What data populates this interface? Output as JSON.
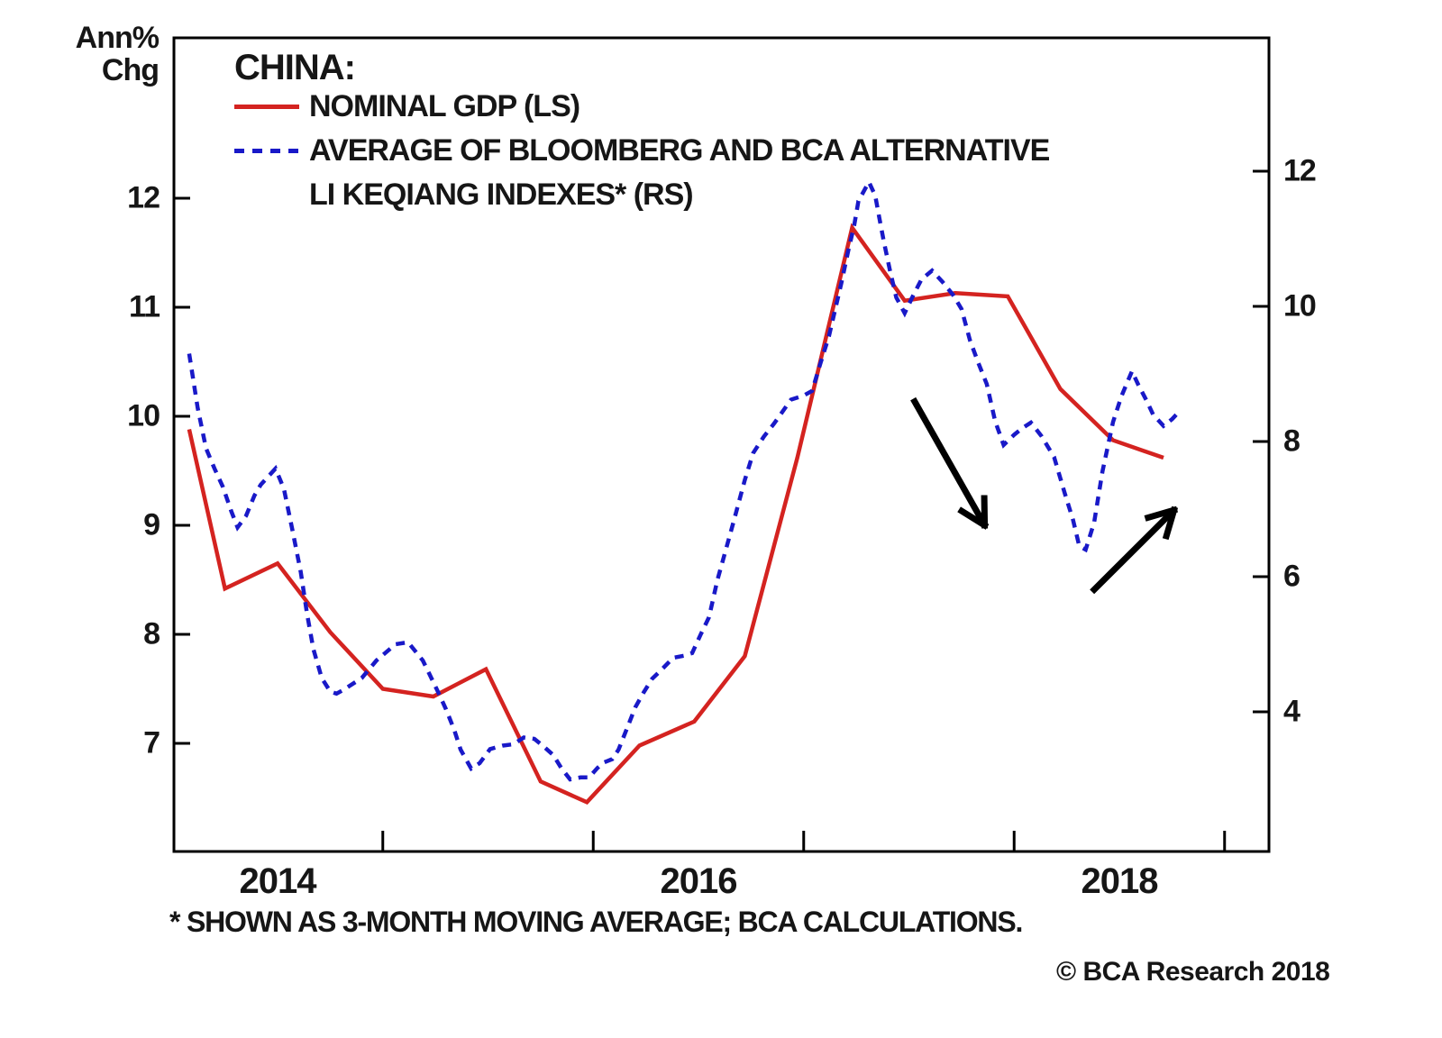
{
  "left_axis_title": {
    "line1": "Ann%",
    "line2": "Chg"
  },
  "legend": {
    "title": "CHINA:",
    "entries": [
      {
        "label": "NOMINAL GDP (LS)",
        "color": "#d42320",
        "style": "solid"
      },
      {
        "label_line1": "AVERAGE OF BLOOMBERG AND BCA ALTERNATIVE",
        "label_line2": "LI KEQIANG INDEXES* (RS)",
        "color": "#1919c8",
        "style": "dashed"
      }
    ]
  },
  "footnote": "* SHOWN AS 3-MONTH MOVING AVERAGE; BCA CALCULATIONS.",
  "copyright": "© BCA Research 2018",
  "chart_data": {
    "type": "line",
    "title": "CHINA: NOMINAL GDP vs AVERAGE OF BLOOMBERG AND BCA ALTERNATIVE LI KEQIANG INDEXES",
    "grid": false,
    "legend_position": "top-left-inside",
    "x_axis": {
      "range": [
        2013.5,
        2018.72
      ],
      "tick_positions": [
        2014.5,
        2015.5,
        2016.5,
        2017.5,
        2018.5
      ],
      "year_labels": [
        {
          "t": 2014,
          "label": "2014"
        },
        {
          "t": 2016,
          "label": "2016"
        },
        {
          "t": 2018,
          "label": "2018"
        }
      ]
    },
    "left_axis": {
      "title": "Ann% Chg",
      "ticks": [
        12,
        11,
        10,
        9,
        8,
        7
      ]
    },
    "right_axis": {
      "ticks": [
        12,
        10,
        8,
        6,
        4
      ]
    },
    "series": [
      {
        "name": "NOMINAL GDP (LS)",
        "axis": "left",
        "color": "#d42320",
        "line_style": "solid",
        "points": [
          [
            2013.58,
            9.88
          ],
          [
            2013.75,
            8.42
          ],
          [
            2014.0,
            8.65
          ],
          [
            2014.25,
            8.02
          ],
          [
            2014.5,
            7.5
          ],
          [
            2014.74,
            7.43
          ],
          [
            2014.99,
            7.68
          ],
          [
            2015.25,
            6.65
          ],
          [
            2015.47,
            6.46
          ],
          [
            2015.72,
            6.98
          ],
          [
            2015.98,
            7.2
          ],
          [
            2016.22,
            7.8
          ],
          [
            2016.47,
            9.62
          ],
          [
            2016.73,
            11.73
          ],
          [
            2016.98,
            11.06
          ],
          [
            2017.22,
            11.13
          ],
          [
            2017.47,
            11.1
          ],
          [
            2017.72,
            10.25
          ],
          [
            2017.97,
            9.78
          ],
          [
            2018.21,
            9.62
          ]
        ]
      },
      {
        "name": "AVERAGE OF BLOOMBERG AND BCA ALTERNATIVE LI KEQIANG INDEXES* (RS)",
        "axis": "right",
        "color": "#1919c8",
        "line_style": "dashed",
        "points": [
          [
            2013.58,
            9.3
          ],
          [
            2013.62,
            8.5
          ],
          [
            2013.66,
            7.9
          ],
          [
            2013.7,
            7.6
          ],
          [
            2013.74,
            7.33
          ],
          [
            2013.78,
            6.97
          ],
          [
            2013.81,
            6.73
          ],
          [
            2013.85,
            6.9
          ],
          [
            2013.89,
            7.2
          ],
          [
            2013.92,
            7.36
          ],
          [
            2013.99,
            7.6
          ],
          [
            2014.03,
            7.3
          ],
          [
            2014.07,
            6.7
          ],
          [
            2014.11,
            6.07
          ],
          [
            2014.14,
            5.45
          ],
          [
            2014.17,
            4.93
          ],
          [
            2014.21,
            4.5
          ],
          [
            2014.25,
            4.3
          ],
          [
            2014.28,
            4.27
          ],
          [
            2014.31,
            4.32
          ],
          [
            2014.4,
            4.5
          ],
          [
            2014.47,
            4.76
          ],
          [
            2014.56,
            5.0
          ],
          [
            2014.62,
            5.03
          ],
          [
            2014.69,
            4.76
          ],
          [
            2014.72,
            4.57
          ],
          [
            2014.76,
            4.31
          ],
          [
            2014.8,
            4.04
          ],
          [
            2014.84,
            3.73
          ],
          [
            2014.87,
            3.44
          ],
          [
            2014.92,
            3.16
          ],
          [
            2014.96,
            3.24
          ],
          [
            2015.01,
            3.45
          ],
          [
            2015.07,
            3.5
          ],
          [
            2015.12,
            3.52
          ],
          [
            2015.17,
            3.62
          ],
          [
            2015.22,
            3.6
          ],
          [
            2015.26,
            3.5
          ],
          [
            2015.31,
            3.36
          ],
          [
            2015.35,
            3.16
          ],
          [
            2015.39,
            3.0
          ],
          [
            2015.44,
            3.03
          ],
          [
            2015.48,
            3.03
          ],
          [
            2015.52,
            3.17
          ],
          [
            2015.55,
            3.25
          ],
          [
            2015.59,
            3.3
          ],
          [
            2015.62,
            3.44
          ],
          [
            2015.67,
            3.83
          ],
          [
            2015.7,
            4.07
          ],
          [
            2015.74,
            4.29
          ],
          [
            2015.78,
            4.49
          ],
          [
            2015.82,
            4.61
          ],
          [
            2015.88,
            4.8
          ],
          [
            2015.93,
            4.83
          ],
          [
            2015.97,
            4.87
          ],
          [
            2016.01,
            5.14
          ],
          [
            2016.05,
            5.4
          ],
          [
            2016.09,
            5.95
          ],
          [
            2016.13,
            6.4
          ],
          [
            2016.17,
            6.85
          ],
          [
            2016.22,
            7.43
          ],
          [
            2016.26,
            7.83
          ],
          [
            2016.31,
            8.07
          ],
          [
            2016.36,
            8.27
          ],
          [
            2016.44,
            8.62
          ],
          [
            2016.5,
            8.68
          ],
          [
            2016.54,
            8.75
          ],
          [
            2016.58,
            9.16
          ],
          [
            2016.62,
            9.56
          ],
          [
            2016.65,
            9.96
          ],
          [
            2016.68,
            10.36
          ],
          [
            2016.71,
            10.8
          ],
          [
            2016.74,
            11.2
          ],
          [
            2016.76,
            11.56
          ],
          [
            2016.81,
            11.84
          ],
          [
            2016.84,
            11.64
          ],
          [
            2016.86,
            11.3
          ],
          [
            2016.88,
            10.97
          ],
          [
            2016.91,
            10.53
          ],
          [
            2016.94,
            10.13
          ],
          [
            2016.98,
            9.9
          ],
          [
            2017.02,
            10.16
          ],
          [
            2017.06,
            10.4
          ],
          [
            2017.11,
            10.53
          ],
          [
            2017.16,
            10.36
          ],
          [
            2017.21,
            10.17
          ],
          [
            2017.25,
            9.96
          ],
          [
            2017.29,
            9.5
          ],
          [
            2017.33,
            9.16
          ],
          [
            2017.37,
            8.85
          ],
          [
            2017.41,
            8.3
          ],
          [
            2017.45,
            7.95
          ],
          [
            2017.5,
            8.1
          ],
          [
            2017.54,
            8.2
          ],
          [
            2017.58,
            8.28
          ],
          [
            2017.63,
            8.08
          ],
          [
            2017.69,
            7.77
          ],
          [
            2017.74,
            7.24
          ],
          [
            2017.78,
            6.84
          ],
          [
            2017.81,
            6.45
          ],
          [
            2017.84,
            6.4
          ],
          [
            2017.88,
            6.8
          ],
          [
            2017.92,
            7.56
          ],
          [
            2017.97,
            8.29
          ],
          [
            2018.01,
            8.67
          ],
          [
            2018.06,
            9.04
          ],
          [
            2018.09,
            8.84
          ],
          [
            2018.13,
            8.6
          ],
          [
            2018.16,
            8.4
          ],
          [
            2018.21,
            8.23
          ],
          [
            2018.25,
            8.33
          ],
          [
            2018.28,
            8.43
          ]
        ]
      }
    ],
    "annotations": {
      "arrows": [
        {
          "name": "down-arrow",
          "axis": "left",
          "from": [
            2017.02,
            10.16
          ],
          "to": [
            2017.36,
            9.0
          ],
          "color": "#000000"
        },
        {
          "name": "up-arrow",
          "axis": "left",
          "from": [
            2017.87,
            8.39
          ],
          "to": [
            2018.26,
            9.14
          ],
          "color": "#000000"
        }
      ]
    }
  }
}
